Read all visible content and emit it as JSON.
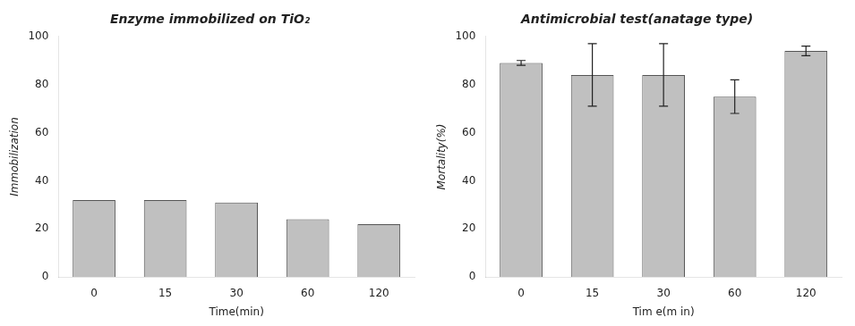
{
  "chart_data": [
    {
      "type": "bar",
      "title": "Enzyme immobilized on TiO₂",
      "xlabel": "Time(min)",
      "ylabel": "Immobilization",
      "categories": [
        "0",
        "15",
        "30",
        "60",
        "120"
      ],
      "values": [
        32,
        32,
        31,
        24,
        22
      ],
      "color": "#c0c0c0",
      "ylim": [
        0,
        100
      ],
      "yticks": [
        0,
        20,
        40,
        60,
        80,
        100
      ],
      "grid": false
    },
    {
      "type": "bar",
      "title": "Antimicrobial test(anatage type)",
      "xlabel": "Tim e(m in)",
      "ylabel": "Mortality(%)",
      "categories": [
        "0",
        "15",
        "30",
        "60",
        "120"
      ],
      "values": [
        89,
        84,
        84,
        75,
        94
      ],
      "errors": [
        1.0,
        13.0,
        13.0,
        7.0,
        2.0
      ],
      "color": "#c0c0c0",
      "ylim": [
        0,
        100
      ],
      "yticks": [
        0,
        20,
        40,
        60,
        80,
        100
      ],
      "grid": false
    }
  ]
}
